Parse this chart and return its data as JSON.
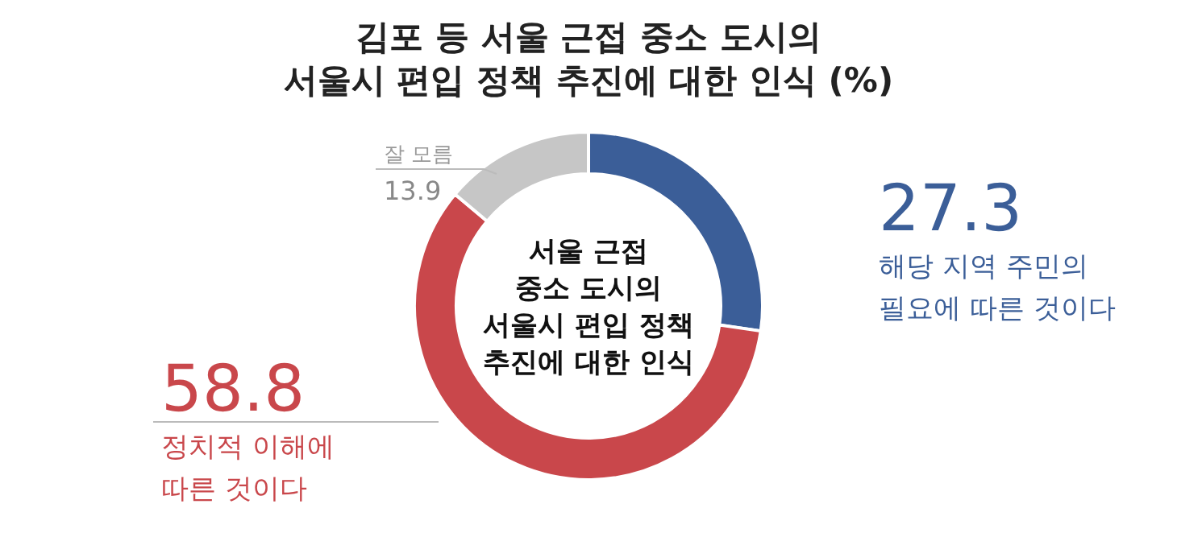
{
  "chart_data": {
    "type": "donut",
    "title": "김포 등 서울 근접 중소 도시의 서울시 편입 정책 추진에 대한 인식 (%)",
    "categories": [
      "해당 지역 주민의 필요에 따른 것이다",
      "정치적 이해에 따른 것이다",
      "잘 모름"
    ],
    "values": [
      27.3,
      58.8,
      13.9
    ],
    "colors": [
      "#3b5e98",
      "#c9474b",
      "#c6c6c6"
    ],
    "data_labels": true,
    "annotations": [
      "서울 근접 중소 도시의 서울시 편입 정책 추진에 대한 인식"
    ]
  }
}
